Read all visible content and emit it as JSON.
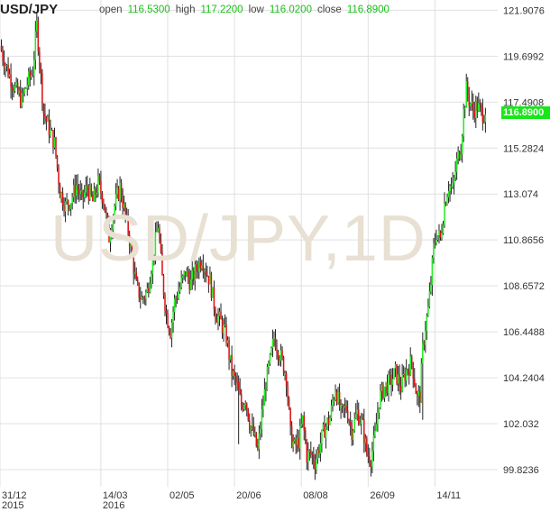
{
  "header": {
    "symbol": "USD/JPY",
    "open_label": "open",
    "open_value": "116.5300",
    "high_label": "high",
    "high_value": "117.2200",
    "low_label": "low",
    "low_value": "116.0200",
    "close_label": "close",
    "close_value": "116.8900"
  },
  "watermark": "USD/JPY,1D",
  "last_price_tag": "116.8900",
  "colors": {
    "up": "#22ee22",
    "down": "#dd1111",
    "tag": "#19e619",
    "grid": "#e0e0e0"
  },
  "chart_data": {
    "type": "candlestick",
    "title": "USD/JPY",
    "timeframe": "1D",
    "y_ticks": [
      "121.9076",
      "119.6992",
      "117.4908",
      "115.2824",
      "113.074",
      "110.8656",
      "108.6572",
      "106.4488",
      "104.2404",
      "102.032",
      "99.8236"
    ],
    "x_ticks": [
      {
        "label": "31/12",
        "sub": "2015",
        "t": 0
      },
      {
        "label": "14/03",
        "sub": "2016",
        "t": 74
      },
      {
        "label": "02/05",
        "sub": "",
        "t": 123
      },
      {
        "label": "20/06",
        "sub": "",
        "t": 172
      },
      {
        "label": "08/08",
        "sub": "",
        "t": 221
      },
      {
        "label": "26/09",
        "sub": "",
        "t": 270
      },
      {
        "label": "14/11",
        "sub": "",
        "t": 319
      }
    ],
    "t_range": [
      0,
      365
    ],
    "ylim": [
      99.0,
      122.4
    ],
    "grid": true,
    "trend_points": [
      [
        0,
        120.2
      ],
      [
        3,
        119.5
      ],
      [
        8,
        118.6
      ],
      [
        12,
        118.0
      ],
      [
        16,
        117.6
      ],
      [
        20,
        118.4
      ],
      [
        24,
        119.0
      ],
      [
        27,
        121.2
      ],
      [
        29,
        119.5
      ],
      [
        32,
        117.0
      ],
      [
        36,
        116.2
      ],
      [
        40,
        115.5
      ],
      [
        44,
        113.2
      ],
      [
        48,
        112.5
      ],
      [
        52,
        112.8
      ],
      [
        56,
        113.5
      ],
      [
        60,
        112.8
      ],
      [
        64,
        113.4
      ],
      [
        68,
        112.7
      ],
      [
        72,
        113.6
      ],
      [
        76,
        112.8
      ],
      [
        80,
        111.0
      ],
      [
        84,
        112.5
      ],
      [
        88,
        113.4
      ],
      [
        92,
        112.0
      ],
      [
        96,
        110.5
      ],
      [
        100,
        108.6
      ],
      [
        104,
        108.0
      ],
      [
        108,
        108.4
      ],
      [
        112,
        110.0
      ],
      [
        116,
        111.6
      ],
      [
        119,
        109.0
      ],
      [
        122,
        107.3
      ],
      [
        125,
        106.5
      ],
      [
        128,
        107.9
      ],
      [
        132,
        108.6
      ],
      [
        136,
        109.3
      ],
      [
        140,
        108.8
      ],
      [
        144,
        109.5
      ],
      [
        148,
        110.0
      ],
      [
        151,
        109.4
      ],
      [
        154,
        108.9
      ],
      [
        158,
        107.4
      ],
      [
        162,
        106.9
      ],
      [
        166,
        106.2
      ],
      [
        170,
        104.5
      ],
      [
        174,
        103.8
      ],
      [
        177,
        102.9
      ],
      [
        180,
        103.3
      ],
      [
        183,
        102.1
      ],
      [
        186,
        101.5
      ],
      [
        189,
        100.7
      ],
      [
        192,
        102.5
      ],
      [
        195,
        104.0
      ],
      [
        198,
        105.0
      ],
      [
        201,
        106.2
      ],
      [
        204,
        105.6
      ],
      [
        207,
        105.0
      ],
      [
        210,
        104.3
      ],
      [
        213,
        101.5
      ],
      [
        216,
        100.9
      ],
      [
        219,
        101.2
      ],
      [
        222,
        102.2
      ],
      [
        225,
        100.5
      ],
      [
        228,
        100.6
      ],
      [
        231,
        100.2
      ],
      [
        234,
        100.9
      ],
      [
        238,
        101.8
      ],
      [
        242,
        102.3
      ],
      [
        246,
        103.8
      ],
      [
        250,
        102.5
      ],
      [
        254,
        102.8
      ],
      [
        258,
        101.7
      ],
      [
        262,
        102.6
      ],
      [
        266,
        101.9
      ],
      [
        269,
        100.6
      ],
      [
        272,
        100.4
      ],
      [
        275,
        101.4
      ],
      [
        278,
        103.2
      ],
      [
        282,
        103.8
      ],
      [
        286,
        104.0
      ],
      [
        290,
        104.5
      ],
      [
        294,
        103.8
      ],
      [
        298,
        104.6
      ],
      [
        302,
        105.0
      ],
      [
        306,
        103.2
      ],
      [
        308,
        103.4
      ],
      [
        310,
        105.6
      ],
      [
        312,
        106.7
      ],
      [
        314,
        107.5
      ],
      [
        316,
        108.8
      ],
      [
        318,
        110.5
      ],
      [
        320,
        111.2
      ],
      [
        323,
        110.9
      ],
      [
        326,
        112.6
      ],
      [
        329,
        113.5
      ],
      [
        332,
        113.3
      ],
      [
        335,
        114.6
      ],
      [
        338,
        115.4
      ],
      [
        340,
        117.0
      ],
      [
        342,
        118.1
      ],
      [
        344,
        117.6
      ],
      [
        347,
        117.1
      ],
      [
        350,
        117.3
      ],
      [
        353,
        117.0
      ],
      [
        356,
        116.9
      ]
    ],
    "final_candle": {
      "open": 116.53,
      "high": 117.22,
      "low": 116.02,
      "close": 116.89
    }
  }
}
